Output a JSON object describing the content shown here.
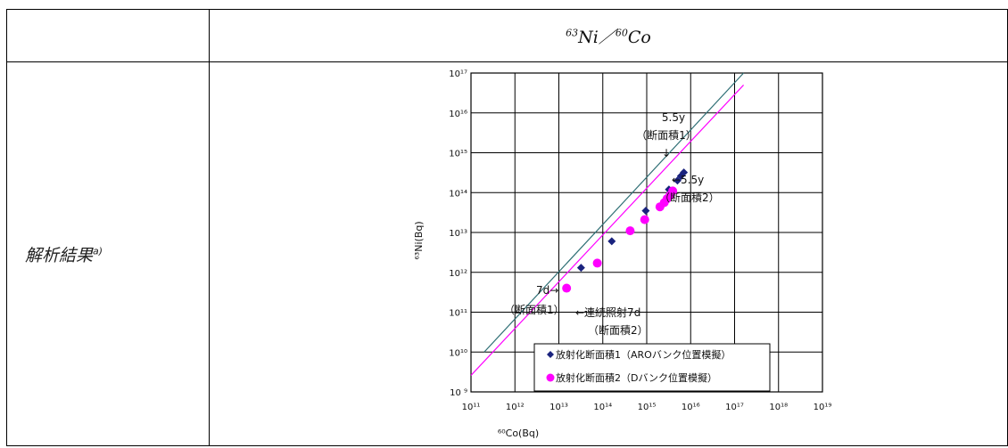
{
  "table": {
    "header_label": "",
    "header_formula": {
      "ni_mass": "63",
      "ni": "Ni",
      "sep": "／",
      "co_mass": "60",
      "co": "Co"
    },
    "row_label": "解析結果",
    "row_label_note": "a)"
  },
  "chart_data": {
    "type": "scatter",
    "xlabel": "⁶⁰Co(Bq)",
    "ylabel": "⁶³Ni(Bq)",
    "x_scale": "log",
    "y_scale": "log",
    "xlim_exp": [
      11,
      19
    ],
    "ylim_exp": [
      9,
      17
    ],
    "x_tick_labels": [
      "10¹¹",
      "10¹²",
      "10¹³",
      "10¹⁴",
      "10¹⁵",
      "10¹⁶",
      "10¹⁷",
      "10¹⁸",
      "10¹⁹"
    ],
    "y_tick_labels": [
      "10 ⁹",
      "10¹⁰",
      "10¹¹",
      "10¹²",
      "10¹³",
      "10¹⁴",
      "10¹⁵",
      "10¹⁶",
      "10¹⁷"
    ],
    "grid": true,
    "legend_position": "bottom-right",
    "series": [
      {
        "name": "放射化断面積1（AROバンク位置模擬）",
        "marker": "diamond",
        "color": "#1a237e",
        "points": [
          [
            32000000000000.0,
            1300000000000.0
          ],
          [
            160000000000000.0,
            6000000000000.0
          ],
          [
            950000000000000.0,
            35000000000000.0
          ],
          [
            3200000000000000.0,
            120000000000000.0
          ],
          [
            5000000000000000.0,
            200000000000000.0
          ],
          [
            6000000000000000.0,
            260000000000000.0
          ],
          [
            7000000000000000.0,
            320000000000000.0
          ]
        ]
      },
      {
        "name": "放射化断面積2（Dバンク位置模擬）",
        "marker": "circle",
        "color": "#ff00ff",
        "points": [
          [
            15000000000000.0,
            400000000000.0
          ],
          [
            75000000000000.0,
            1700000000000.0
          ],
          [
            420000000000000.0,
            11000000000000.0
          ],
          [
            900000000000000.0,
            21000000000000.0
          ],
          [
            2000000000000000.0,
            44000000000000.0
          ],
          [
            2500000000000000.0,
            56000000000000.0
          ],
          [
            2900000000000000.0,
            70000000000000.0
          ],
          [
            3400000000000000.0,
            85000000000000.0
          ],
          [
            3900000000000000.0,
            110000000000000.0
          ]
        ]
      }
    ],
    "lines": [
      {
        "color": "#2f6f75",
        "from": [
          200000000000.0,
          10000000000.0
        ],
        "to": [
          1.6e+17,
          1e+17
        ]
      },
      {
        "color": "#ff00ff",
        "from": [
          100000000000.0,
          2600000000.0
        ],
        "to": [
          1.6e+17,
          5e+16
        ]
      }
    ],
    "annotations": [
      {
        "id": "a1",
        "lines": [
          "5.5y",
          "（断面積1）"
        ],
        "arrow": "↓"
      },
      {
        "id": "a2",
        "lines": [
          "←5.5y",
          "（断面積2）"
        ]
      },
      {
        "id": "a3",
        "lines": [
          "7d→"
        ]
      },
      {
        "id": "a4",
        "lines": [
          "（断面積1）"
        ]
      },
      {
        "id": "a5",
        "lines": [
          "←連続照射7d",
          "（断面積2）"
        ]
      }
    ]
  }
}
